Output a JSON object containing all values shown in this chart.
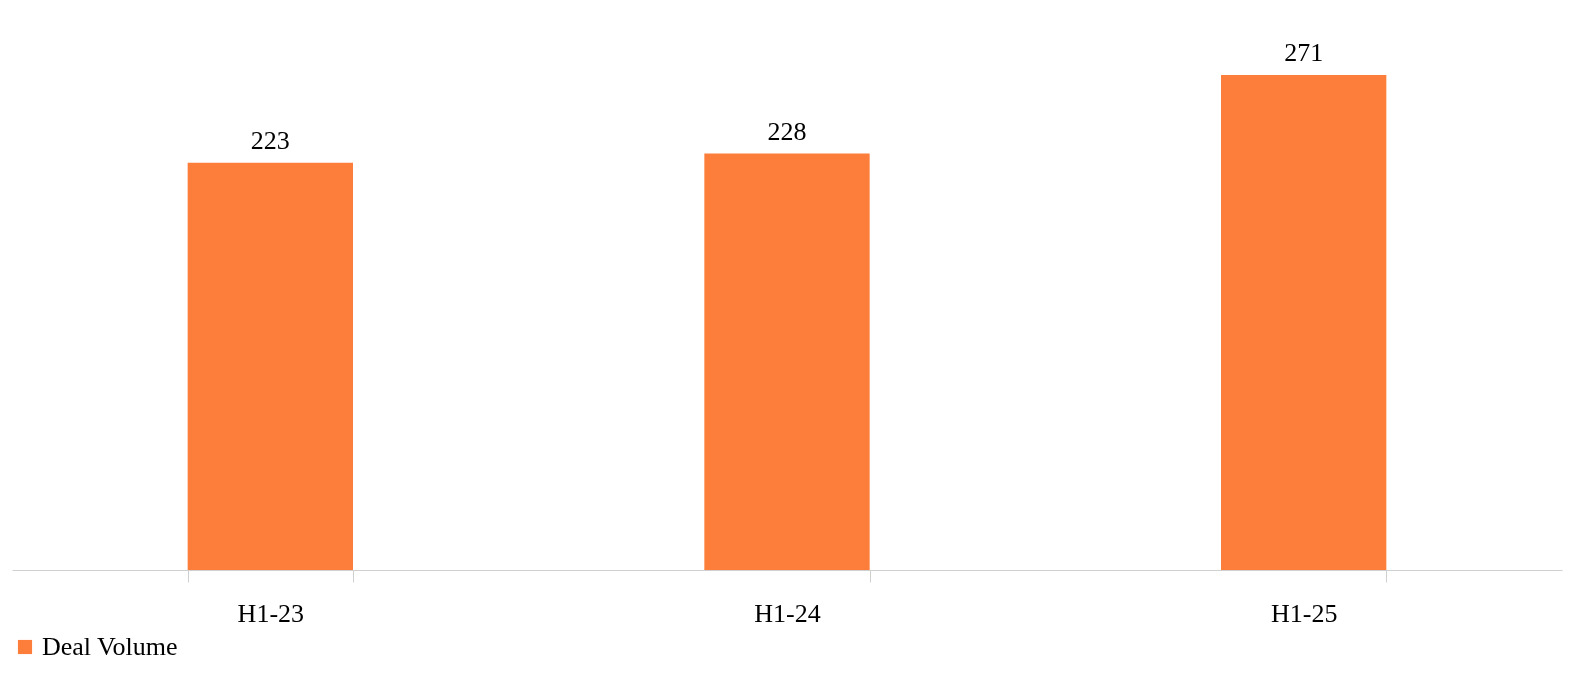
{
  "chart_data": {
    "type": "bar",
    "categories": [
      "H1-23",
      "H1-24",
      "H1-25"
    ],
    "series": [
      {
        "name": "Deal Volume",
        "color": "#fd7e3b",
        "values": [
          223,
          228,
          271
        ]
      }
    ],
    "data_labels": true,
    "legend": "bottom",
    "grid": false,
    "tick_labels": "x"
  }
}
